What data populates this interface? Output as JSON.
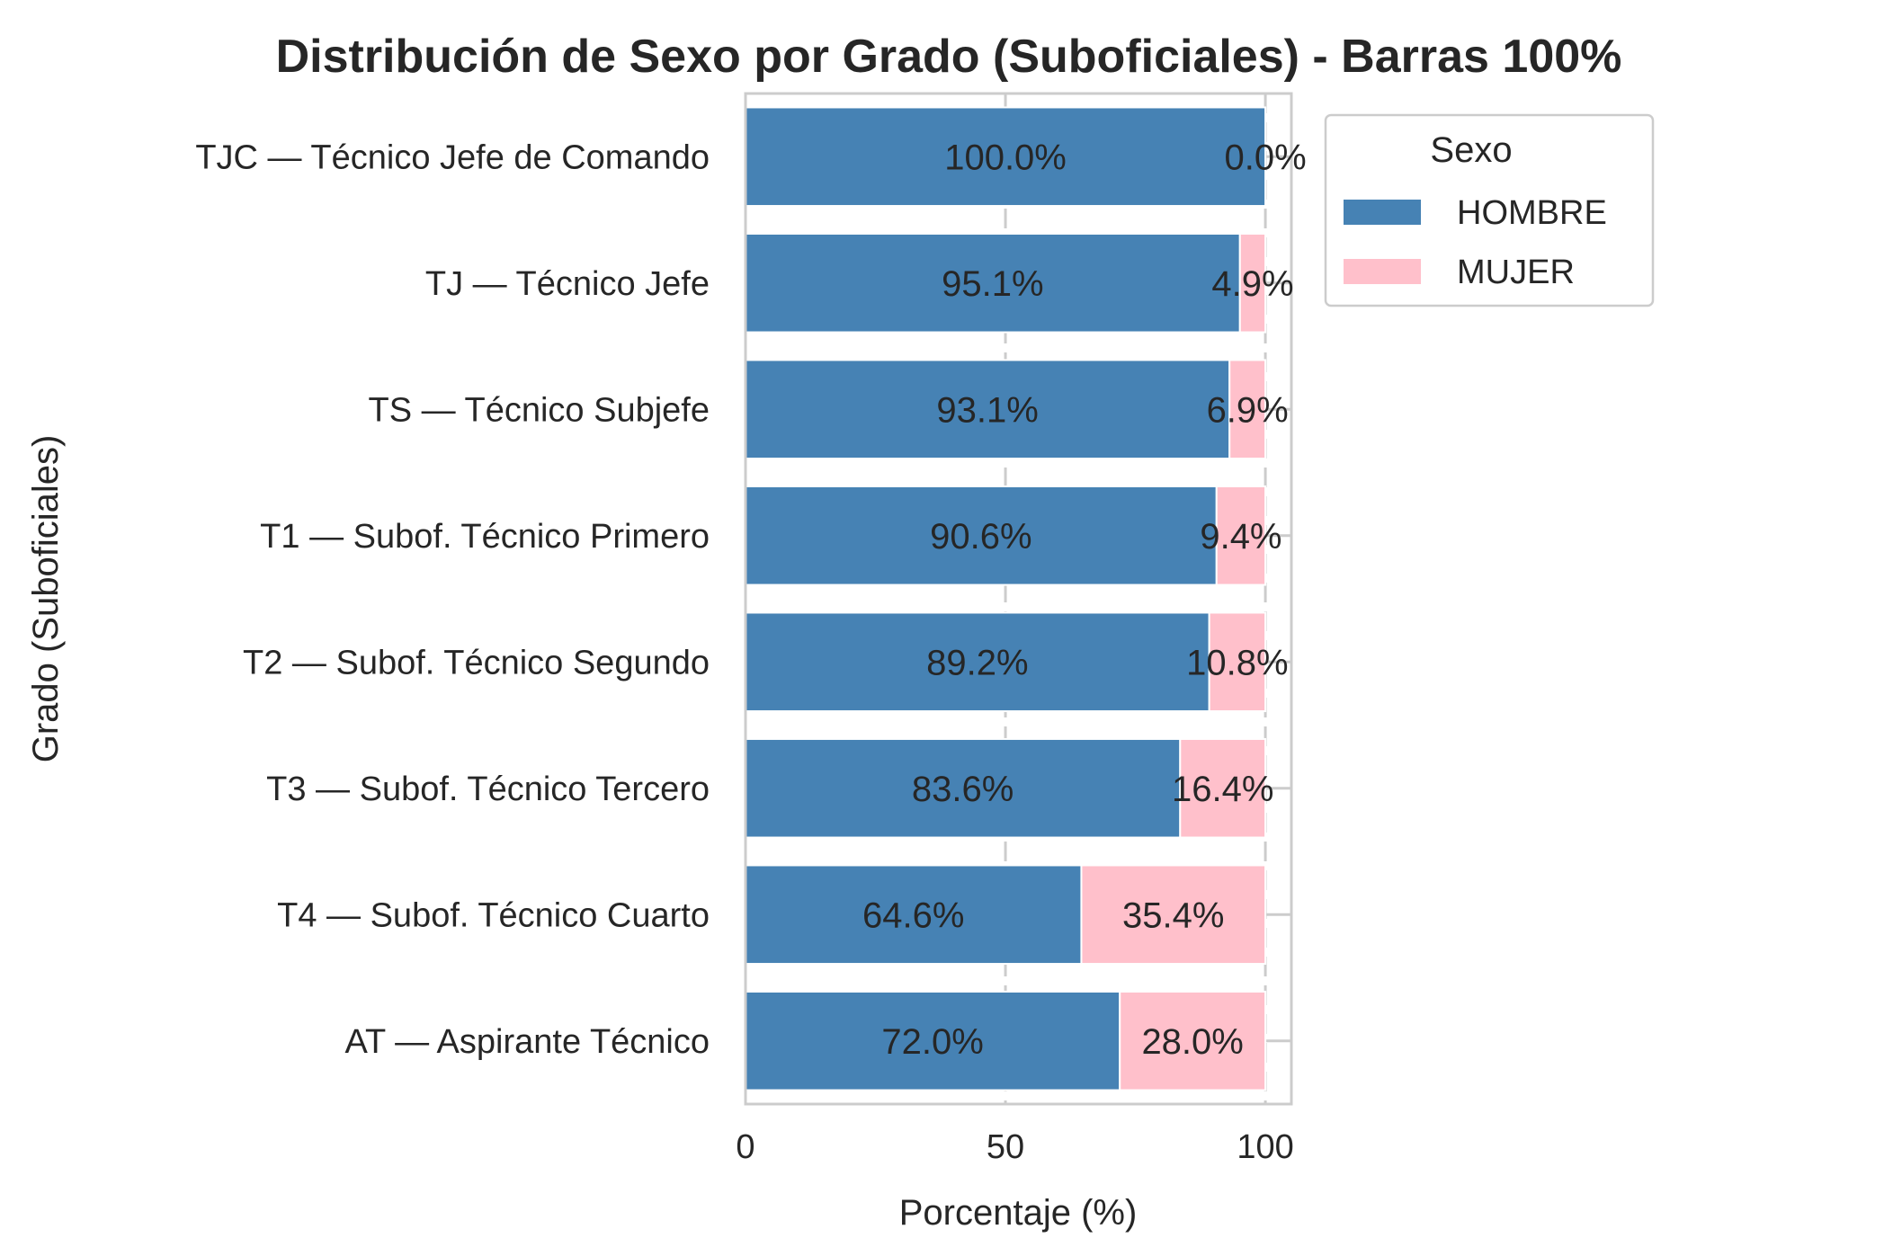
{
  "chart_data": {
    "type": "bar",
    "orientation": "horizontal",
    "stacked": "percent",
    "title": "Distribución de Sexo por Grado (Suboficiales) - Barras 100%",
    "xlabel": "Porcentaje (%)",
    "ylabel": "Grado (Suboficiales)",
    "xlim": [
      0,
      105
    ],
    "xticks": [
      "0",
      "50",
      "100"
    ],
    "xtick_values": [
      0,
      50,
      100
    ],
    "grid": true,
    "categories": [
      "TJC — Técnico Jefe de Comando",
      "TJ — Técnico Jefe",
      "TS — Técnico Subjefe",
      "T1 — Subof. Técnico Primero",
      "T2 — Subof. Técnico Segundo",
      "T3 — Subof. Técnico Tercero",
      "T4 — Subof. Técnico Cuarto",
      "AT — Aspirante Técnico"
    ],
    "series": [
      {
        "name": "HOMBRE",
        "color": "#4682b4",
        "values": [
          100.0,
          95.1,
          93.1,
          90.6,
          89.2,
          83.6,
          64.6,
          72.0
        ],
        "labels": [
          "100.0%",
          "95.1%",
          "93.1%",
          "90.6%",
          "89.2%",
          "83.6%",
          "64.6%",
          "72.0%"
        ]
      },
      {
        "name": "MUJER",
        "color": "#ffc0cb",
        "values": [
          0.0,
          4.9,
          6.9,
          9.4,
          10.8,
          16.4,
          35.4,
          28.0
        ],
        "labels": [
          "0.0%",
          "4.9%",
          "6.9%",
          "9.4%",
          "10.8%",
          "16.4%",
          "35.4%",
          "28.0%"
        ]
      }
    ],
    "legend": {
      "title": "Sexo",
      "placement": "outside-top-right"
    }
  }
}
